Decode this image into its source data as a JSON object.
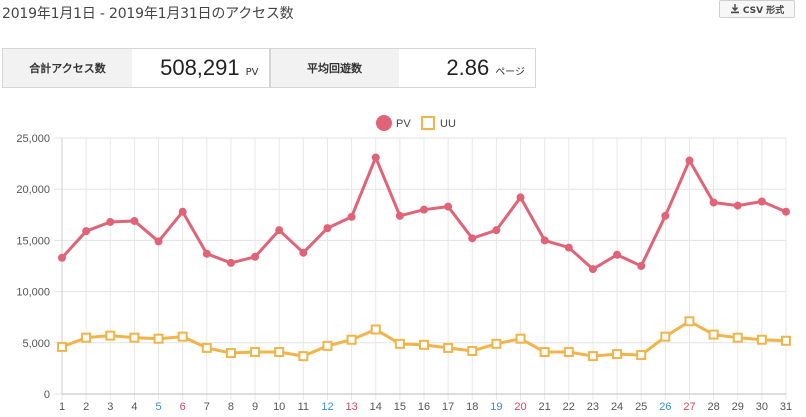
{
  "header": {
    "title": "2019年1月1日 - 2019年1月31日のアクセス数",
    "csv_label": "CSV 形式"
  },
  "stats": {
    "total_label": "合計アクセス数",
    "total_value": "508,291",
    "total_unit": "PV",
    "avg_label": "平均回遊数",
    "avg_value": "2.86",
    "avg_unit": "ページ"
  },
  "colors": {
    "pv": "#e06377",
    "uu": "#f0b44a",
    "blue_day": "#3a8fd6",
    "red_day": "#e0455a"
  },
  "chart_data": {
    "type": "line",
    "x": [
      1,
      2,
      3,
      4,
      5,
      6,
      7,
      8,
      9,
      10,
      11,
      12,
      13,
      14,
      15,
      16,
      17,
      18,
      19,
      20,
      21,
      22,
      23,
      24,
      25,
      26,
      27,
      28,
      29,
      30,
      31
    ],
    "x_tick_labels": [
      "1",
      "2",
      "3",
      "4",
      "5",
      "6",
      "7",
      "8",
      "9",
      "10",
      "11",
      "12",
      "13",
      "14",
      "15",
      "16",
      "17",
      "18",
      "19",
      "20",
      "21",
      "22",
      "23",
      "24",
      "25",
      "26",
      "27",
      "28",
      "29",
      "30",
      "31"
    ],
    "x_tick_colors": {
      "5": "blue",
      "6": "red",
      "12": "blue",
      "13": "red",
      "19": "blue",
      "20": "red",
      "26": "blue",
      "27": "red"
    },
    "ylim": [
      0,
      25000
    ],
    "y_ticks": [
      0,
      5000,
      10000,
      15000,
      20000,
      25000
    ],
    "y_tick_labels": [
      "0",
      "5,000",
      "10,000",
      "15,000",
      "20,000",
      "25,000"
    ],
    "grid": true,
    "legend_position": "top-center",
    "series": [
      {
        "name": "PV",
        "marker": "circle",
        "values": [
          13300,
          15900,
          16800,
          16900,
          14900,
          17800,
          13700,
          12800,
          13400,
          16000,
          13800,
          16200,
          17300,
          23100,
          17400,
          18000,
          18300,
          15200,
          16000,
          19200,
          15000,
          14300,
          12200,
          13600,
          12500,
          17400,
          22800,
          18700,
          18400,
          18800,
          17800
        ]
      },
      {
        "name": "UU",
        "marker": "square",
        "values": [
          4600,
          5500,
          5700,
          5500,
          5400,
          5600,
          4500,
          4000,
          4100,
          4100,
          3700,
          4700,
          5300,
          6300,
          4900,
          4800,
          4500,
          4200,
          4900,
          5400,
          4100,
          4100,
          3700,
          3900,
          3800,
          5600,
          7100,
          5800,
          5500,
          5300,
          5200
        ]
      }
    ]
  }
}
